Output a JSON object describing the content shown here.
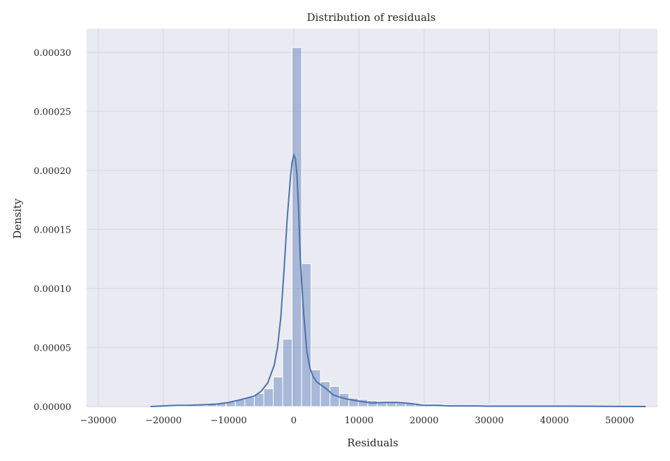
{
  "chart_data": {
    "type": "bar",
    "title": "Distribution of residuals",
    "xlabel": "Residuals",
    "ylabel": "Density",
    "xlim": [
      -31800,
      55800
    ],
    "ylim": [
      0,
      0.00032
    ],
    "grid": true,
    "x_ticks": [
      -30000,
      -20000,
      -10000,
      0,
      10000,
      20000,
      30000,
      40000,
      50000
    ],
    "x_tick_labels": [
      "−30000",
      "−20000",
      "−10000",
      "0",
      "10000",
      "20000",
      "30000",
      "40000",
      "50000"
    ],
    "y_ticks": [
      0,
      5e-05,
      0.0001,
      0.00015,
      0.0002,
      0.00025,
      0.0003
    ],
    "y_tick_labels": [
      "0.00000",
      "0.00005",
      "0.00010",
      "0.00015",
      "0.00020",
      "0.00025",
      "0.00030"
    ],
    "histogram": {
      "bin_start": -22000,
      "bin_width": 1450,
      "bar_color": "#4c72b0",
      "densities": [
        5e-07,
        5e-07,
        5e-07,
        5e-07,
        1e-06,
        1e-06,
        2e-06,
        3e-06,
        4e-06,
        6e-06,
        8e-06,
        1.1e-05,
        1.5e-05,
        2.5e-05,
        5.7e-05,
        0.000304,
        0.000121,
        3.1e-05,
        2.1e-05,
        1.7e-05,
        1.1e-05,
        7e-06,
        6e-06,
        5e-06,
        4e-06,
        4e-06,
        4e-06,
        3e-06,
        2e-06,
        2e-06,
        2e-06,
        1.5e-06,
        1e-06,
        1e-06,
        1e-06,
        1e-06,
        5e-07,
        5e-07,
        5e-07,
        5e-07,
        5e-07,
        5e-07,
        3e-07,
        3e-07,
        3e-07,
        3e-07,
        3e-07,
        3e-07,
        3e-07,
        3e-07
      ]
    },
    "kde": {
      "name": "",
      "color": "#4c72b0",
      "x": [
        -22000,
        -20000,
        -18000,
        -16000,
        -14000,
        -12000,
        -10000,
        -8000,
        -6000,
        -5000,
        -4000,
        -3000,
        -2500,
        -2000,
        -1500,
        -1000,
        -500,
        -250,
        0,
        250,
        500,
        750,
        1000,
        1500,
        2000,
        2500,
        3000,
        3500,
        4000,
        5000,
        6000,
        7000,
        8000,
        10000,
        12000,
        14000,
        16000,
        18000,
        20000,
        22000,
        24000,
        26000,
        28000,
        30000,
        34000,
        38000,
        42000,
        46000,
        50000,
        54000
      ],
      "y": [
        0,
        5e-07,
        1e-06,
        1e-06,
        1.5e-06,
        2e-06,
        3.5e-06,
        6e-06,
        9e-06,
        1.3e-05,
        2e-05,
        3.5e-05,
        5e-05,
        7.5e-05,
        0.000115,
        0.00016,
        0.000195,
        0.000207,
        0.000213,
        0.00021,
        0.000195,
        0.000165,
        0.000125,
        8e-05,
        4.7e-05,
        3.2e-05,
        2.5e-05,
        2.1e-05,
        1.9e-05,
        1.5e-05,
        1e-05,
        8e-06,
        6.5e-06,
        4.5e-06,
        3e-06,
        3.5e-06,
        3.5e-06,
        2.5e-06,
        1e-06,
        1e-06,
        5e-07,
        5e-07,
        5e-07,
        3e-07,
        3e-07,
        3e-07,
        3e-07,
        2e-07,
        1e-07,
        0
      ]
    }
  }
}
